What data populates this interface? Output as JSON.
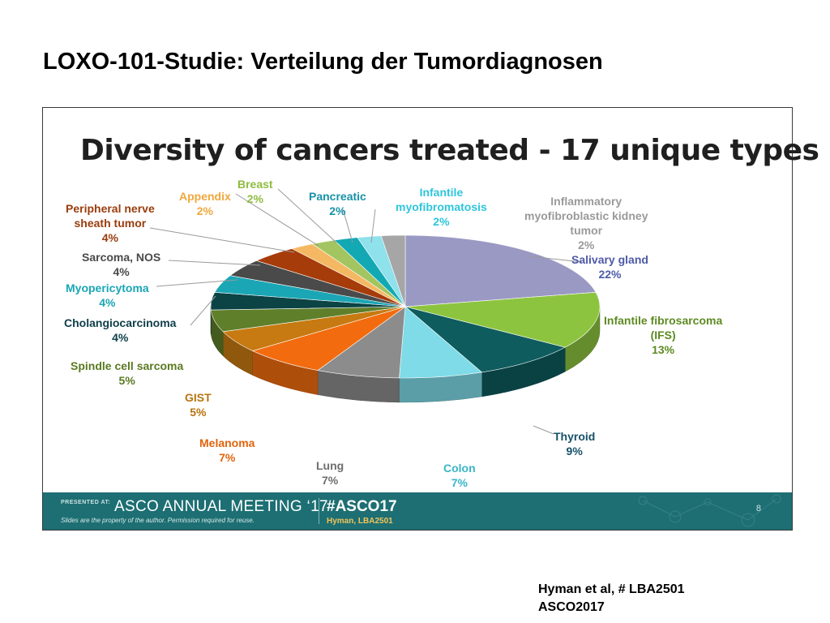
{
  "slide_title": "LOXO-101-Studie: Verteilung der Tumordiagnosen",
  "citation": {
    "line1": "Hyman et al, # LBA2501",
    "line2": "ASCO2017"
  },
  "footer": {
    "presented_at": "PRESENTED AT:",
    "meeting": "ASCO ANNUAL MEETING ‘17",
    "disclaimer": "Slides are the property of the author. Permission required for reuse.",
    "hashtag": "#ASCO17",
    "abstract": "Hyman, LBA2501",
    "page_number": "8",
    "colors": {
      "band": "#1d6f73",
      "abstract_text": "#f2c45a"
    }
  },
  "chart_data": {
    "type": "pie",
    "title": "Diversity of cancers treated - 17 unique types",
    "unit": "%",
    "slices": [
      {
        "name": "Salivary gland",
        "value": 22,
        "label_lines": [
          "Salivary gland",
          "22%"
        ],
        "color": "#9a99c4",
        "text_color": "#4e5aa8"
      },
      {
        "name": "Infantile fibrosarcoma (IFS)",
        "value": 13,
        "label_lines": [
          "Infantile fibrosarcoma",
          "(IFS)",
          "13%"
        ],
        "color": "#8dc43f",
        "text_color": "#5d8a22"
      },
      {
        "name": "Thyroid",
        "value": 9,
        "label_lines": [
          "Thyroid",
          "9%"
        ],
        "color": "#0e5c5e",
        "text_color": "#17506a"
      },
      {
        "name": "Colon",
        "value": 7,
        "label_lines": [
          "Colon",
          "7%"
        ],
        "color": "#7fdbe8",
        "text_color": "#3ab6c9"
      },
      {
        "name": "Lung",
        "value": 7,
        "label_lines": [
          "Lung",
          "7%"
        ],
        "color": "#8c8c8c",
        "text_color": "#6e6e6e"
      },
      {
        "name": "Melanoma",
        "value": 7,
        "label_lines": [
          "Melanoma",
          "7%"
        ],
        "color": "#f26c0f",
        "text_color": "#e0640c"
      },
      {
        "name": "GIST",
        "value": 5,
        "label_lines": [
          "GIST",
          "5%"
        ],
        "color": "#c77a12",
        "text_color": "#b8740f"
      },
      {
        "name": "Spindle cell sarcoma",
        "value": 5,
        "label_lines": [
          "Spindle cell sarcoma",
          "5%"
        ],
        "color": "#5f7f2a",
        "text_color": "#5a7a22"
      },
      {
        "name": "Cholangiocarcinoma",
        "value": 4,
        "label_lines": [
          "Cholangiocarcinoma",
          "4%"
        ],
        "color": "#0c4345",
        "text_color": "#0f3e4a"
      },
      {
        "name": "Myopericytoma",
        "value": 4,
        "label_lines": [
          "Myopericytoma",
          "4%"
        ],
        "color": "#1aa6b5",
        "text_color": "#1aa6b5"
      },
      {
        "name": "Sarcoma, NOS",
        "value": 4,
        "label_lines": [
          "Sarcoma, NOS",
          "4%"
        ],
        "color": "#4a4a4a",
        "text_color": "#4a4a4a"
      },
      {
        "name": "Peripheral nerve sheath tumor",
        "value": 4,
        "label_lines": [
          "Peripheral nerve",
          "sheath tumor",
          "4%"
        ],
        "color": "#a63c0a",
        "text_color": "#9a3c0c"
      },
      {
        "name": "Appendix",
        "value": 2,
        "label_lines": [
          "Appendix",
          "2%"
        ],
        "color": "#f5b862",
        "text_color": "#f0a83c"
      },
      {
        "name": "Breast",
        "value": 2,
        "label_lines": [
          "Breast",
          "2%"
        ],
        "color": "#a3c561",
        "text_color": "#8fbc3f"
      },
      {
        "name": "Pancreatic",
        "value": 2,
        "label_lines": [
          "Pancreatic",
          "2%"
        ],
        "color": "#12a9b4",
        "text_color": "#1792a8"
      },
      {
        "name": "Infantile myofibromatosis",
        "value": 2,
        "label_lines": [
          "Infantile",
          "myofibromatosis",
          "2%"
        ],
        "color": "#8fe1ec",
        "text_color": "#2ec6db"
      },
      {
        "name": "Inflammatory myofibroblastic kidney tumor",
        "value": 2,
        "label_lines": [
          "Inflammatory",
          "myofibroblastic kidney",
          "tumor",
          "2%"
        ],
        "color": "#a6a6a6",
        "text_color": "#9a9a9a"
      }
    ]
  }
}
